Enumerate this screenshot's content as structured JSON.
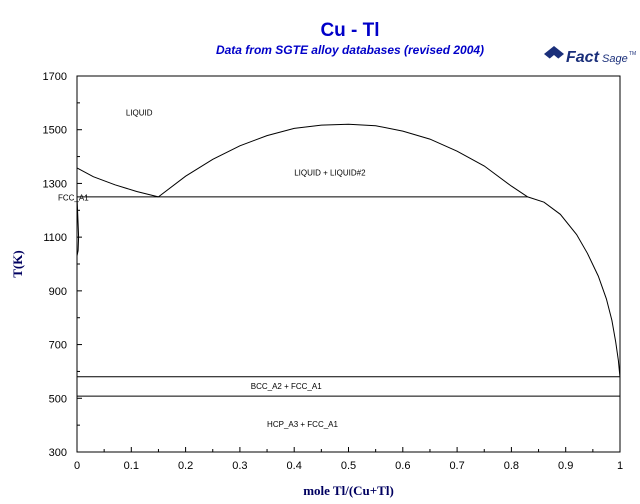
{
  "header": {
    "title": "Cu - Tl",
    "subtitle": "Data from SGTE alloy databases (revised 2004)",
    "logo_text_main": "Fact",
    "logo_text_sub": "Sage",
    "logo_mark": "TM"
  },
  "colors": {
    "title": "#0000c8",
    "axis_label": "#000060",
    "line": "#000000",
    "logo": "#1a2f7a"
  },
  "chart_data": {
    "type": "line",
    "xlabel": "mole Tl/(Cu+Tl)",
    "ylabel": "T(K)",
    "xlim": [
      0,
      1
    ],
    "ylim": [
      300,
      1700
    ],
    "xticks": [
      0,
      0.1,
      0.2,
      0.3,
      0.4,
      0.5,
      0.6,
      0.7,
      0.8,
      0.9,
      1
    ],
    "xtick_labels": [
      "0",
      "0.1",
      "0.2",
      "0.3",
      "0.4",
      "0.5",
      "0.6",
      "0.7",
      "0.8",
      "0.9",
      "1"
    ],
    "yticks": [
      300,
      500,
      700,
      900,
      1100,
      1300,
      1500,
      1700
    ],
    "ytick_labels": [
      "300",
      "500",
      "700",
      "900",
      "1100",
      "1300",
      "1500",
      "1700"
    ],
    "grid": false,
    "series": [
      {
        "points": [
          [
            0,
            1358
          ],
          [
            0.03,
            1325
          ],
          [
            0.07,
            1295
          ],
          [
            0.11,
            1270
          ],
          [
            0.15,
            1250
          ]
        ]
      },
      {
        "points": [
          [
            0.15,
            1250
          ],
          [
            0.2,
            1327
          ],
          [
            0.25,
            1390
          ],
          [
            0.3,
            1440
          ],
          [
            0.35,
            1478
          ],
          [
            0.4,
            1505
          ],
          [
            0.45,
            1517
          ],
          [
            0.5,
            1520
          ],
          [
            0.55,
            1515
          ],
          [
            0.6,
            1495
          ],
          [
            0.65,
            1465
          ],
          [
            0.7,
            1420
          ],
          [
            0.75,
            1365
          ],
          [
            0.8,
            1290
          ],
          [
            0.83,
            1250
          ]
        ]
      },
      {
        "points": [
          [
            0.83,
            1250
          ],
          [
            0.86,
            1230
          ],
          [
            0.89,
            1185
          ],
          [
            0.92,
            1110
          ],
          [
            0.94,
            1040
          ],
          [
            0.96,
            955
          ],
          [
            0.975,
            870
          ],
          [
            0.985,
            790
          ],
          [
            0.992,
            710
          ],
          [
            0.997,
            640
          ],
          [
            1,
            577
          ]
        ]
      },
      {
        "points": [
          [
            0,
            1250
          ],
          [
            0.83,
            1250
          ]
        ]
      },
      {
        "points": [
          [
            0,
            580
          ],
          [
            1,
            580
          ]
        ]
      },
      {
        "points": [
          [
            0,
            508
          ],
          [
            1,
            508
          ]
        ]
      },
      {
        "points": [
          [
            0,
            1250
          ],
          [
            0.002,
            1150
          ],
          [
            0.003,
            1100
          ],
          [
            0.002,
            1050
          ],
          [
            0,
            1030
          ]
        ]
      }
    ],
    "region_labels": [
      {
        "text": "LIQUID",
        "x": 0.09,
        "y": 1565
      },
      {
        "text": "LIQUID + LIQUID#2",
        "x": 0.4,
        "y": 1340
      },
      {
        "text": "FCC_A1",
        "x": -0.035,
        "y": 1248
      },
      {
        "text": "BCC_A2 + FCC_A1",
        "x": 0.32,
        "y": 545
      },
      {
        "text": "HCP_A3 + FCC_A1",
        "x": 0.35,
        "y": 405
      }
    ]
  }
}
